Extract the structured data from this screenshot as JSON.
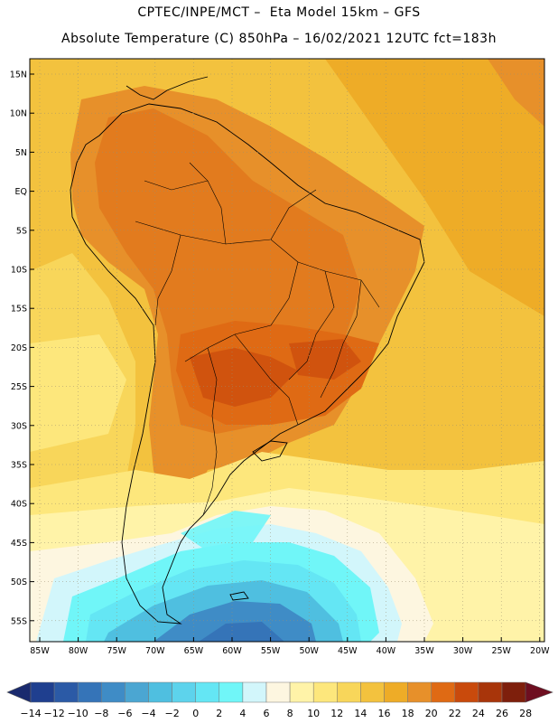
{
  "header": {
    "line1": "CPTEC/INPE/MCT –  Eta Model 15km – GFS",
    "line2": "Absolute Temperature (C) 850hPa – 16/02/2021 12UTC fct=183h"
  },
  "map": {
    "lat_labels": [
      "15N",
      "10N",
      "5N",
      "EQ",
      "5S",
      "10S",
      "15S",
      "20S",
      "25S",
      "30S",
      "35S",
      "40S",
      "45S",
      "50S",
      "55S"
    ],
    "lon_labels": [
      "85W",
      "80W",
      "75W",
      "70W",
      "65W",
      "60W",
      "55W",
      "50W",
      "45W",
      "40W",
      "35W",
      "30W",
      "25W",
      "20W"
    ],
    "features": [
      "South America coastline",
      "country borders",
      "Brazilian state borders"
    ]
  },
  "colorbar": {
    "labels": [
      "-14",
      "-12",
      "-10",
      "-8",
      "-6",
      "-4",
      "-2",
      "0",
      "2",
      "4",
      "6",
      "8",
      "10",
      "12",
      "14",
      "16",
      "18",
      "20",
      "22",
      "24",
      "26",
      "28"
    ],
    "colors": [
      "#1f3f8f",
      "#2b5aa6",
      "#3574b8",
      "#3f8cc6",
      "#4ba6d2",
      "#4fbfe0",
      "#5dd3ec",
      "#64e6f4",
      "#70f6f8",
      "#d2f6fb",
      "#fdf6e0",
      "#fff3a8",
      "#fde77c",
      "#f8d65a",
      "#f3c23e",
      "#eeac27",
      "#e7902a",
      "#df6a14",
      "#c94a0c",
      "#a8350a",
      "#7e1f0c"
    ],
    "arrow_left_color": "#1a2a6e",
    "arrow_right_color": "#6e0e20"
  }
}
